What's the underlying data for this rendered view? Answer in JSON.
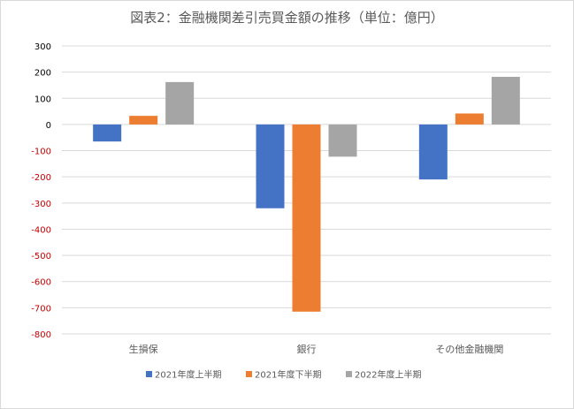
{
  "chart_data": {
    "type": "bar",
    "title": "図表2：金融機関差引売買金額の推移（単位：億円）",
    "categories": [
      "生損保",
      "銀行",
      "その他金融機関"
    ],
    "series": [
      {
        "name": "2021年度上半期",
        "color": "#4472C4",
        "values": [
          -65,
          -320,
          -210
        ]
      },
      {
        "name": "2021年度下半期",
        "color": "#ED7D31",
        "values": [
          33,
          -715,
          42
        ]
      },
      {
        "name": "2022年度上半期",
        "color": "#A5A5A5",
        "values": [
          162,
          -123,
          182
        ]
      }
    ],
    "ylim": [
      -800,
      300
    ],
    "yticks": [
      "300",
      "200",
      "100",
      "0",
      "-100",
      "-200",
      "-300",
      "-400",
      "-500",
      "-600",
      "-700",
      "-800"
    ],
    "tick_color_positive": "#000000",
    "tick_color_negative": "#C00000",
    "grid": true,
    "legend": "bottom"
  }
}
